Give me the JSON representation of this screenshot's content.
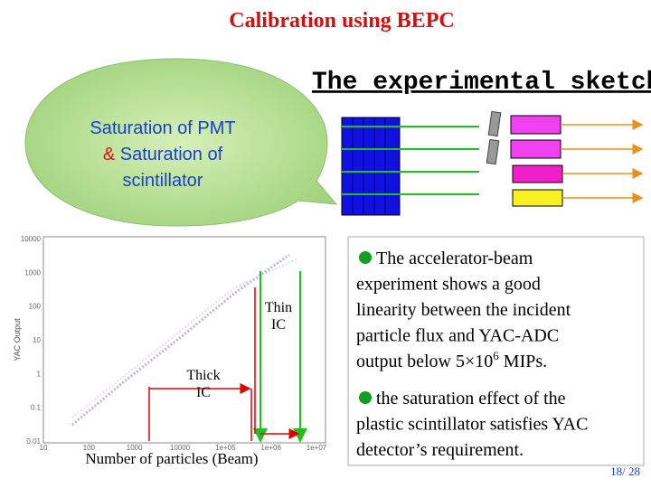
{
  "title": "Calibration using BEPC",
  "bubble": {
    "lines": [
      [
        "Saturation of PMT"
      ],
      [
        "&",
        " Saturation of"
      ],
      [
        "scintillator"
      ]
    ]
  },
  "sketch_title": "The experimental sketch",
  "plot": {
    "y_axis_label": "YAC Output",
    "yticks": [
      "10000",
      "1000",
      "100",
      "10",
      "1",
      "0.1",
      "0.01"
    ],
    "xticks": [
      "10",
      "100",
      "1000",
      "10000",
      "1e+05",
      "1e+06",
      "1e+07"
    ],
    "annotations": [
      [
        "Thin",
        "IC"
      ],
      [
        "Thick",
        "IC"
      ]
    ],
    "x_axis_label": "Number of particles (Beam)"
  },
  "bullets": [
    [
      "The accelerator-beam",
      "experiment shows a good",
      "linearity between the incident",
      "particle flux and YAC-ADC",
      {
        "text": "output below 5×10",
        "sup": "6",
        "after": " MIPs."
      }
    ],
    [
      "the saturation effect of the",
      "plastic scintillator satisfies YAC",
      "detector’s requirement."
    ]
  ],
  "page_number": "18/ 28"
}
